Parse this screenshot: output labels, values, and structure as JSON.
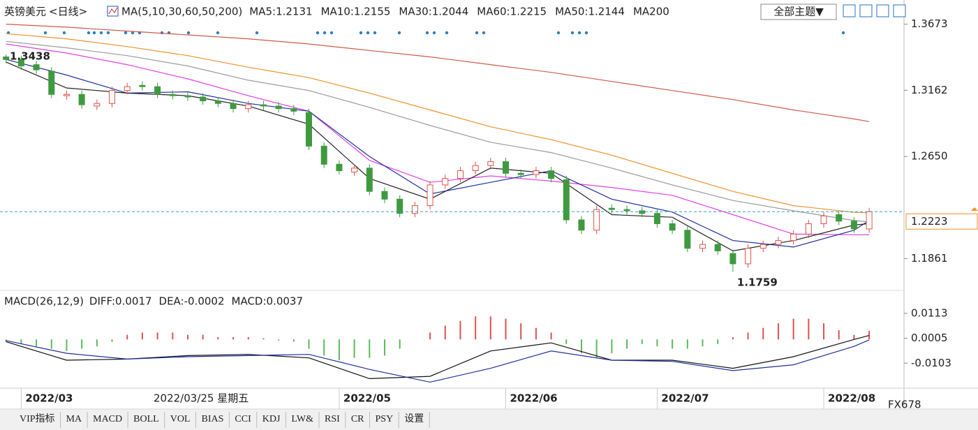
{
  "header": {
    "symbol": "英镑美元",
    "period": "<日线>",
    "indicator": "MA(5,10,30,60,50,200)",
    "theme_button": "全部主题▼"
  },
  "chart_data": [
    {
      "type": "candlestick",
      "xlim": [
        -0.4,
        59.3
      ],
      "ylim": [
        1.162,
        1.386
      ],
      "yticks": [
        1.3673,
        1.3162,
        {
          "value": 1.265,
          "label": "1.2650"
        },
        1.1861
      ],
      "xticks": [
        {
          "value": 1,
          "label": "2022/03"
        },
        {
          "value": 22,
          "label": "2022/05"
        },
        {
          "value": 33,
          "label": "2022/06"
        },
        {
          "value": 43,
          "label": "2022/07"
        },
        {
          "value": 54,
          "label": "2022/08"
        }
      ],
      "up_color": "#e0504a",
      "down_color": "#3f9a3f",
      "open": [
        1.342,
        1.34,
        1.336,
        1.331,
        1.312,
        1.313,
        1.304,
        1.306,
        1.316,
        1.32,
        1.319,
        1.313,
        1.312,
        1.311,
        1.308,
        1.306,
        1.302,
        1.305,
        1.304,
        1.302,
        1.299,
        1.273,
        1.259,
        1.253,
        1.256,
        1.238,
        1.232,
        1.221,
        1.227,
        1.243,
        1.248,
        1.254,
        1.258,
        1.261,
        1.252,
        1.251,
        1.254,
        1.247,
        1.216,
        1.208,
        1.225,
        1.224,
        1.223,
        1.221,
        1.213,
        1.208,
        1.194,
        1.197,
        1.19,
        1.182,
        1.194,
        1.197,
        1.2,
        1.205,
        1.213,
        1.22,
        1.215,
        1.209
      ],
      "high": [
        1.3438,
        1.343,
        1.339,
        1.334,
        1.316,
        1.316,
        1.309,
        1.319,
        1.322,
        1.323,
        1.322,
        1.316,
        1.315,
        1.314,
        1.311,
        1.309,
        1.308,
        1.308,
        1.307,
        1.305,
        1.302,
        1.276,
        1.262,
        1.259,
        1.259,
        1.241,
        1.235,
        1.23,
        1.246,
        1.251,
        1.257,
        1.261,
        1.264,
        1.264,
        1.255,
        1.257,
        1.257,
        1.25,
        1.219,
        1.227,
        1.228,
        1.227,
        1.226,
        1.224,
        1.216,
        1.211,
        1.2,
        1.2,
        1.193,
        1.197,
        1.2,
        1.203,
        1.208,
        1.216,
        1.222,
        1.223,
        1.218,
        1.2253
      ],
      "low": [
        1.337,
        1.332,
        1.329,
        1.31,
        1.309,
        1.302,
        1.301,
        1.303,
        1.313,
        1.316,
        1.31,
        1.309,
        1.308,
        1.305,
        1.303,
        1.299,
        1.299,
        1.301,
        1.299,
        1.297,
        1.27,
        1.256,
        1.251,
        1.25,
        1.235,
        1.229,
        1.218,
        1.218,
        1.224,
        1.24,
        1.245,
        1.251,
        1.255,
        1.249,
        1.248,
        1.248,
        1.245,
        1.213,
        1.205,
        1.205,
        1.221,
        1.22,
        1.218,
        1.21,
        1.205,
        1.191,
        1.191,
        1.189,
        1.1759,
        1.179,
        1.191,
        1.194,
        1.197,
        1.202,
        1.21,
        1.212,
        1.206,
        1.206
      ],
      "close": [
        1.34,
        1.335,
        1.332,
        1.313,
        1.313,
        1.305,
        1.306,
        1.316,
        1.319,
        1.319,
        1.313,
        1.312,
        1.311,
        1.308,
        1.306,
        1.302,
        1.305,
        1.304,
        1.302,
        1.3,
        1.273,
        1.259,
        1.254,
        1.256,
        1.238,
        1.232,
        1.221,
        1.227,
        1.243,
        1.248,
        1.254,
        1.258,
        1.261,
        1.252,
        1.251,
        1.254,
        1.248,
        1.216,
        1.208,
        1.224,
        1.224,
        1.223,
        1.221,
        1.213,
        1.208,
        1.194,
        1.197,
        1.192,
        1.182,
        1.194,
        1.197,
        1.2,
        1.205,
        1.213,
        1.219,
        1.215,
        1.209,
        1.2223
      ],
      "series": [
        {
          "name": "MA5:1.2131",
          "color": "#222222",
          "x": [
            0,
            4,
            8,
            12,
            16,
            20,
            24,
            28,
            32,
            36,
            40,
            44,
            48,
            52,
            56,
            57
          ],
          "values": [
            1.338,
            1.318,
            1.314,
            1.312,
            1.304,
            1.29,
            1.248,
            1.232,
            1.256,
            1.252,
            1.22,
            1.218,
            1.192,
            1.2,
            1.212,
            1.2131
          ]
        },
        {
          "name": "MA10:1.2155",
          "color": "#1f2f9e",
          "x": [
            0,
            4,
            8,
            12,
            16,
            20,
            24,
            28,
            32,
            36,
            40,
            44,
            48,
            52,
            56,
            57
          ],
          "values": [
            1.34,
            1.328,
            1.314,
            1.315,
            1.306,
            1.3,
            1.265,
            1.236,
            1.245,
            1.254,
            1.232,
            1.222,
            1.2,
            1.195,
            1.208,
            1.2155
          ]
        },
        {
          "name": "MA30:1.2044",
          "color": "#e040e0",
          "x": [
            0,
            4,
            8,
            12,
            16,
            20,
            24,
            28,
            32,
            36,
            40,
            44,
            48,
            52,
            56,
            57
          ],
          "values": [
            1.352,
            1.345,
            1.336,
            1.325,
            1.312,
            1.3,
            1.262,
            1.245,
            1.25,
            1.246,
            1.241,
            1.235,
            1.22,
            1.205,
            1.2045,
            1.2044
          ]
        },
        {
          "name": "MA60:1.2215",
          "color": "#f0902a",
          "x": [
            0,
            4,
            8,
            12,
            16,
            20,
            24,
            28,
            32,
            36,
            40,
            44,
            48,
            52,
            56,
            57
          ],
          "values": [
            1.36,
            1.356,
            1.35,
            1.343,
            1.334,
            1.326,
            1.314,
            1.301,
            1.288,
            1.278,
            1.266,
            1.252,
            1.238,
            1.227,
            1.2218,
            1.2215
          ]
        },
        {
          "name": "MA50:1.2144",
          "color": "#9a9a9a",
          "x": [
            0,
            4,
            8,
            12,
            16,
            20,
            24,
            28,
            32,
            36,
            40,
            44,
            48,
            52,
            56,
            57
          ],
          "values": [
            1.354,
            1.349,
            1.343,
            1.335,
            1.324,
            1.316,
            1.303,
            1.289,
            1.276,
            1.268,
            1.256,
            1.243,
            1.231,
            1.223,
            1.2155,
            1.2144
          ]
        },
        {
          "name": "MA200",
          "color": "#d05a4a",
          "x": [
            0,
            4,
            8,
            12,
            16,
            20,
            24,
            28,
            32,
            36,
            40,
            44,
            48,
            52,
            56,
            57
          ],
          "values": [
            1.3673,
            1.365,
            1.362,
            1.359,
            1.356,
            1.352,
            1.347,
            1.342,
            1.336,
            1.33,
            1.323,
            1.316,
            1.309,
            1.301,
            1.294,
            1.292
          ]
        }
      ],
      "last_price": 1.2223,
      "annotations": [
        "1.3438",
        "1.1759"
      ],
      "cursor_date": "2022/03/25 星期五"
    },
    {
      "type": "macd",
      "title": "MACD(26,12,9)",
      "xlim": [
        -0.4,
        59.3
      ],
      "ylim": [
        -0.0208,
        0.014
      ],
      "yticks": [
        0.0113,
        0.0005,
        -0.0103
      ],
      "histogram": {
        "name": "MACD:0.0037",
        "up_color": "#e05050",
        "down_color": "#5cb85c",
        "values": [
          -0.001,
          -0.002,
          -0.003,
          -0.004,
          -0.005,
          -0.004,
          -0.003,
          -0.001,
          0.002,
          0.003,
          0.003,
          0.003,
          0.002,
          0.002,
          0.001,
          0.001,
          0.001,
          0.0005,
          -0.0005,
          -0.001,
          -0.004,
          -0.007,
          -0.009,
          -0.008,
          -0.008,
          -0.007,
          -0.004,
          0,
          0.003,
          0.006,
          0.008,
          0.01,
          0.01,
          0.009,
          0.007,
          0.005,
          0.003,
          -0.002,
          -0.006,
          -0.008,
          -0.006,
          -0.004,
          -0.002,
          -0.003,
          -0.004,
          -0.004,
          -0.003,
          -0.002,
          0.001,
          0.003,
          0.005,
          0.007,
          0.009,
          0.009,
          0.007,
          0.004,
          0.002,
          0.0037
        ]
      },
      "series": [
        {
          "name": "DIFF:0.0017",
          "color": "#111111",
          "x": [
            0,
            4,
            8,
            12,
            16,
            20,
            24,
            28,
            32,
            36,
            40,
            44,
            48,
            52,
            56,
            57
          ],
          "values": [
            -0.001,
            -0.009,
            -0.0085,
            -0.007,
            -0.0065,
            -0.008,
            -0.017,
            -0.016,
            -0.005,
            -0.0015,
            -0.009,
            -0.009,
            -0.0125,
            -0.0075,
            0,
            0.0017
          ]
        },
        {
          "name": "DEA:-0.0002",
          "color": "#1f2f9e",
          "x": [
            0,
            4,
            8,
            12,
            16,
            20,
            24,
            28,
            32,
            36,
            40,
            44,
            48,
            52,
            56,
            57
          ],
          "values": [
            -0.0005,
            -0.006,
            -0.0085,
            -0.0075,
            -0.007,
            -0.0065,
            -0.013,
            -0.0185,
            -0.0125,
            -0.005,
            -0.009,
            -0.0095,
            -0.0135,
            -0.011,
            -0.003,
            -0.0002
          ]
        }
      ]
    }
  ],
  "tabs": [
    "VIP指标",
    "MA",
    "MACD",
    "BOLL",
    "VOL",
    "BIAS",
    "CCI",
    "KDJ",
    "LW&",
    "RSI",
    "CR",
    "PSY",
    "设置"
  ],
  "watermark": "FX678"
}
